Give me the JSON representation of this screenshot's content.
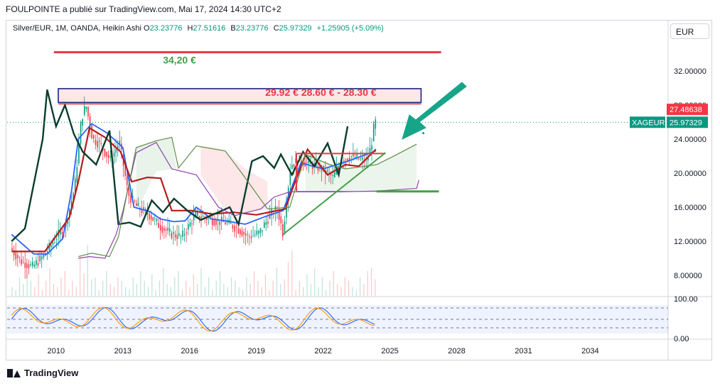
{
  "header": {
    "caption": "FOULPOINTE a publié sur TradingView.com, Mai 17, 2024 14:30 UTC+2"
  },
  "legend": {
    "symbol": "Silver/EUR, 1M, OANDA, Heikin Ashi",
    "o_label": "O",
    "o_value": "23.23776",
    "h_label": "H",
    "h_value": "27.51616",
    "b_label": "B",
    "b_value": "23.23776",
    "c_label": "C",
    "c_value": "25.97329",
    "change": "+1.25905 (+5.09%)"
  },
  "currency_button": "EUR",
  "footer": {
    "brand": "TradingView"
  },
  "colors": {
    "up": "#089981",
    "down": "#f23645",
    "accent": "#e63946",
    "green_line": "#43a047",
    "navy": "#1a237e",
    "blue": "#2962ff",
    "dark": "#0b3d2e",
    "maroon": "#b71c1c",
    "rsi_orange": "#ff9800"
  },
  "chart_data": {
    "type": "candlestick",
    "x_axis": {
      "ticks": [
        "2010",
        "2013",
        "2016",
        "2019",
        "2022",
        "2025",
        "2028",
        "2031",
        "2034"
      ],
      "range": [
        2007.8,
        2037.5
      ]
    },
    "y_axis": {
      "ticks": [
        "32.00000",
        "28.00000",
        "24.00000",
        "20.00000",
        "16.00000",
        "12.00000",
        "8.00000"
      ],
      "range": [
        5.5,
        35.5
      ]
    },
    "rsi_axis": {
      "ticks": [
        "100.00",
        "0.00"
      ],
      "range": [
        0,
        100
      ]
    },
    "price_labels": [
      {
        "text": "27.48638",
        "value": 27.48638,
        "color": "#f23645"
      },
      {
        "symbol": "XAGEUR",
        "text": "25.97329",
        "value": 25.97329,
        "color": "#089981"
      }
    ],
    "annotations": [
      {
        "text": "34,20 €",
        "value": 34.2,
        "color": "#43a047"
      },
      {
        "text": "29.92 €  28.60 € - 28.30 €",
        "low": 28.3,
        "high": 29.92,
        "color": "#e63946"
      }
    ],
    "levels": {
      "resistance": 34.2,
      "box_low": 28.3,
      "box_high": 29.92,
      "support": 17.85,
      "last": 25.97
    },
    "trendline": {
      "from": [
        2020.2,
        12.8
      ],
      "to": [
        2024.8,
        22.4
      ]
    },
    "closes": [
      [
        2008.0,
        11.2
      ],
      [
        2008.5,
        9.6
      ],
      [
        2009.0,
        9.0
      ],
      [
        2009.5,
        10.3
      ],
      [
        2010.0,
        12.2
      ],
      [
        2010.5,
        14.0
      ],
      [
        2010.9,
        18.5
      ],
      [
        2011.2,
        26.5
      ],
      [
        2011.4,
        28.0
      ],
      [
        2011.7,
        24.0
      ],
      [
        2012.0,
        23.5
      ],
      [
        2012.5,
        21.5
      ],
      [
        2012.9,
        23.7
      ],
      [
        2013.3,
        17.5
      ],
      [
        2013.7,
        16.0
      ],
      [
        2014.2,
        15.2
      ],
      [
        2014.7,
        13.8
      ],
      [
        2015.2,
        12.9
      ],
      [
        2015.7,
        12.5
      ],
      [
        2016.3,
        15.0
      ],
      [
        2016.7,
        14.8
      ],
      [
        2017.2,
        14.4
      ],
      [
        2017.7,
        14.2
      ],
      [
        2018.2,
        13.5
      ],
      [
        2018.7,
        12.5
      ],
      [
        2019.2,
        13.0
      ],
      [
        2019.7,
        15.2
      ],
      [
        2020.0,
        15.8
      ],
      [
        2020.25,
        13.0
      ],
      [
        2020.6,
        21.0
      ],
      [
        2021.0,
        21.5
      ],
      [
        2021.5,
        21.0
      ],
      [
        2022.0,
        20.5
      ],
      [
        2022.5,
        19.5
      ],
      [
        2022.9,
        21.5
      ],
      [
        2023.3,
        22.0
      ],
      [
        2023.8,
        21.5
      ],
      [
        2024.0,
        21.5
      ],
      [
        2024.2,
        23.0
      ],
      [
        2024.37,
        25.97
      ]
    ],
    "histogram_levels": [
      0.3,
      0.2,
      0.6,
      0.4,
      0.8,
      0.5,
      0.3,
      0.7,
      0.2,
      0.5,
      0.9,
      0.4,
      0.3,
      0.6,
      0.8,
      0.2,
      0.5,
      0.3,
      0.7,
      0.4,
      0.9,
      0.3,
      0.6,
      0.2,
      0.5,
      0.8,
      0.4,
      0.3,
      0.6,
      0.5
    ],
    "rsi_levels": [
      90,
      20
    ]
  }
}
